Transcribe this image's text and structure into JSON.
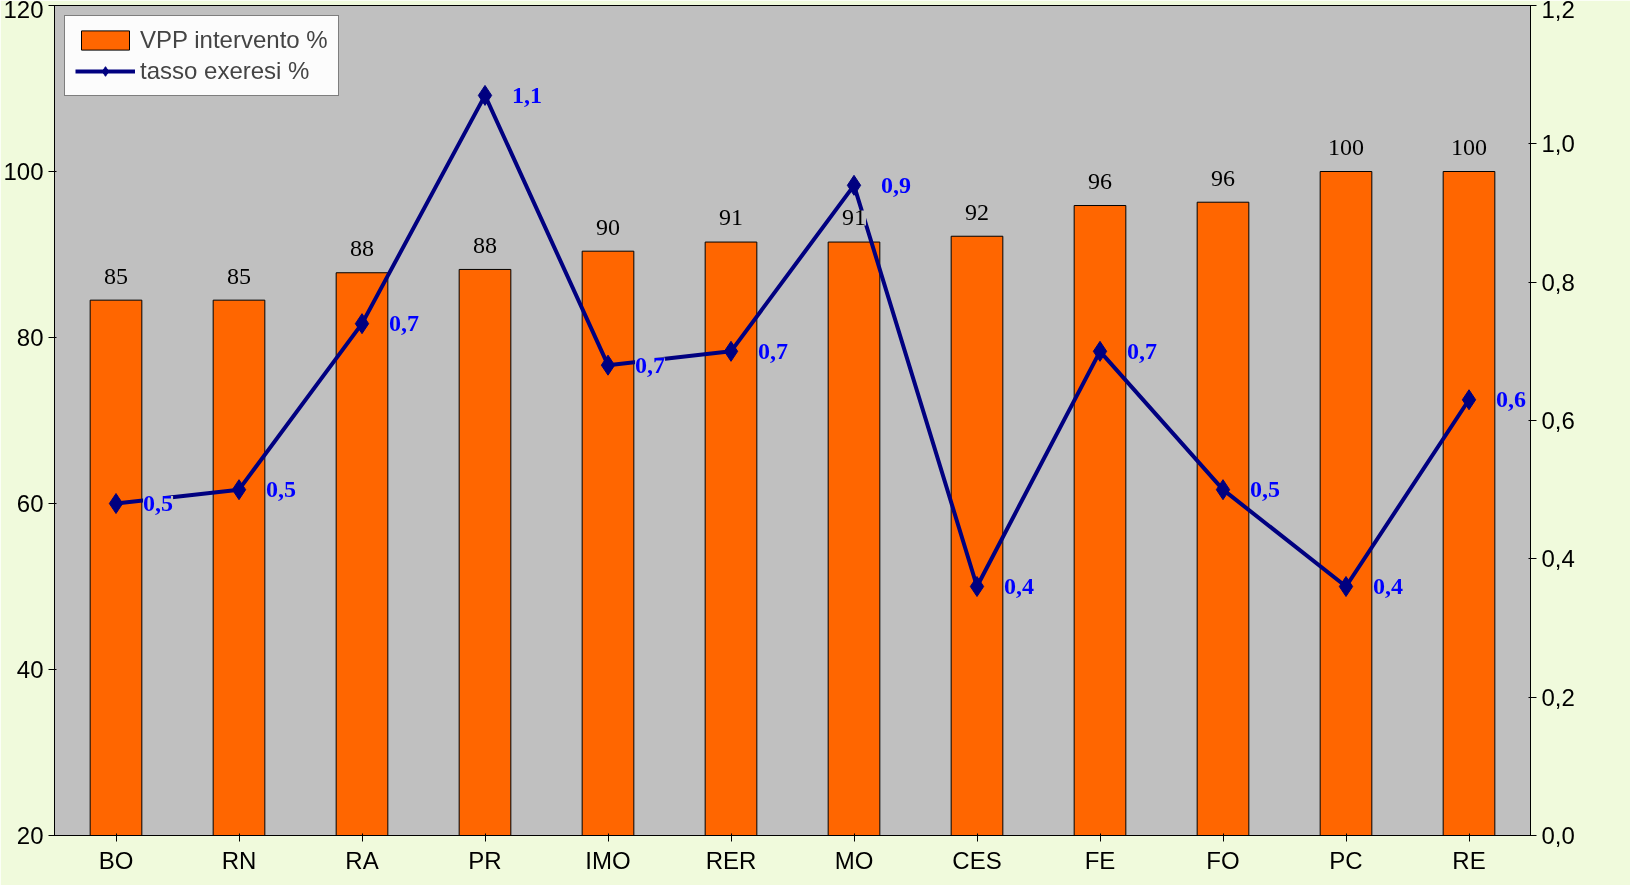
{
  "chart_data": {
    "type": "bar",
    "categories": [
      "BO",
      "RN",
      "RA",
      "PR",
      "IMO",
      "RER",
      "MO",
      "CES",
      "FE",
      "FO",
      "PC",
      "RE"
    ],
    "ylim": [
      20,
      120
    ],
    "yticks": [
      20,
      40,
      60,
      80,
      100,
      120
    ],
    "y2lim": [
      0,
      1.2
    ],
    "y2ticks": [
      {
        "value": 0,
        "label": "0,0"
      },
      {
        "value": 0.2,
        "label": "0,2"
      },
      {
        "value": 0.4,
        "label": "0,4"
      },
      {
        "value": 0.6,
        "label": "0,6"
      },
      {
        "value": 0.8,
        "label": "0,8"
      },
      {
        "value": 1.0,
        "label": "1,0"
      },
      {
        "value": 1.2,
        "label": "1,2"
      }
    ],
    "grid": false,
    "legend": "top left",
    "series": [
      {
        "name": "VPP intervento %",
        "color": "#ff6600",
        "values": [
          84.5,
          84.5,
          87.8,
          88.2,
          90.4,
          91.5,
          91.5,
          92.2,
          95.9,
          96.3,
          100,
          100
        ],
        "value_labels": [
          "85",
          "85",
          "88",
          "88",
          "90",
          "91",
          "91",
          "92",
          "96",
          "96",
          "100",
          "100"
        ]
      },
      {
        "name": "tasso exeresi %",
        "type": "line",
        "axis": "y2",
        "color": "#000080",
        "marker": "diamond",
        "values": [
          0.48,
          0.5,
          0.74,
          1.07,
          0.68,
          0.7,
          0.94,
          0.36,
          0.7,
          0.5,
          0.36,
          0.63
        ],
        "value_labels": [
          "0,5",
          "0,5",
          "0,7",
          "1,1",
          "0,7",
          "0,7",
          "0,9",
          "0,4",
          "0,7",
          "0,5",
          "0,4",
          "0,6"
        ]
      }
    ]
  }
}
